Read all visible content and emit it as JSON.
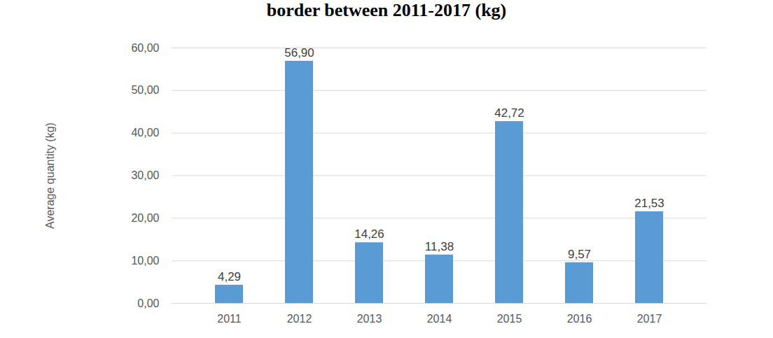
{
  "chart_data": {
    "type": "bar",
    "title": "border between 2011-2017 (kg)",
    "y_label": "Average quantity (kg)",
    "categories": [
      "2011",
      "2012",
      "2013",
      "2014",
      "2015",
      "2016",
      "2017"
    ],
    "values": [
      4.29,
      56.9,
      14.26,
      11.38,
      42.72,
      9.57,
      21.53
    ],
    "value_labels": [
      "4,29",
      "56,90",
      "14,26",
      "11,38",
      "42,72",
      "9,57",
      "21,53"
    ],
    "color": "#5b9bd5",
    "ylim": [
      0,
      60
    ],
    "yticks": [
      {
        "value": 0,
        "label": "0,00"
      },
      {
        "value": 10,
        "label": "10,00"
      },
      {
        "value": 20,
        "label": "20,00"
      },
      {
        "value": 30,
        "label": "30,00"
      },
      {
        "value": 40,
        "label": "40,00"
      },
      {
        "value": 50,
        "label": "50,00"
      },
      {
        "value": 60,
        "label": "60,00"
      }
    ],
    "grid": true,
    "data_labels": true
  }
}
